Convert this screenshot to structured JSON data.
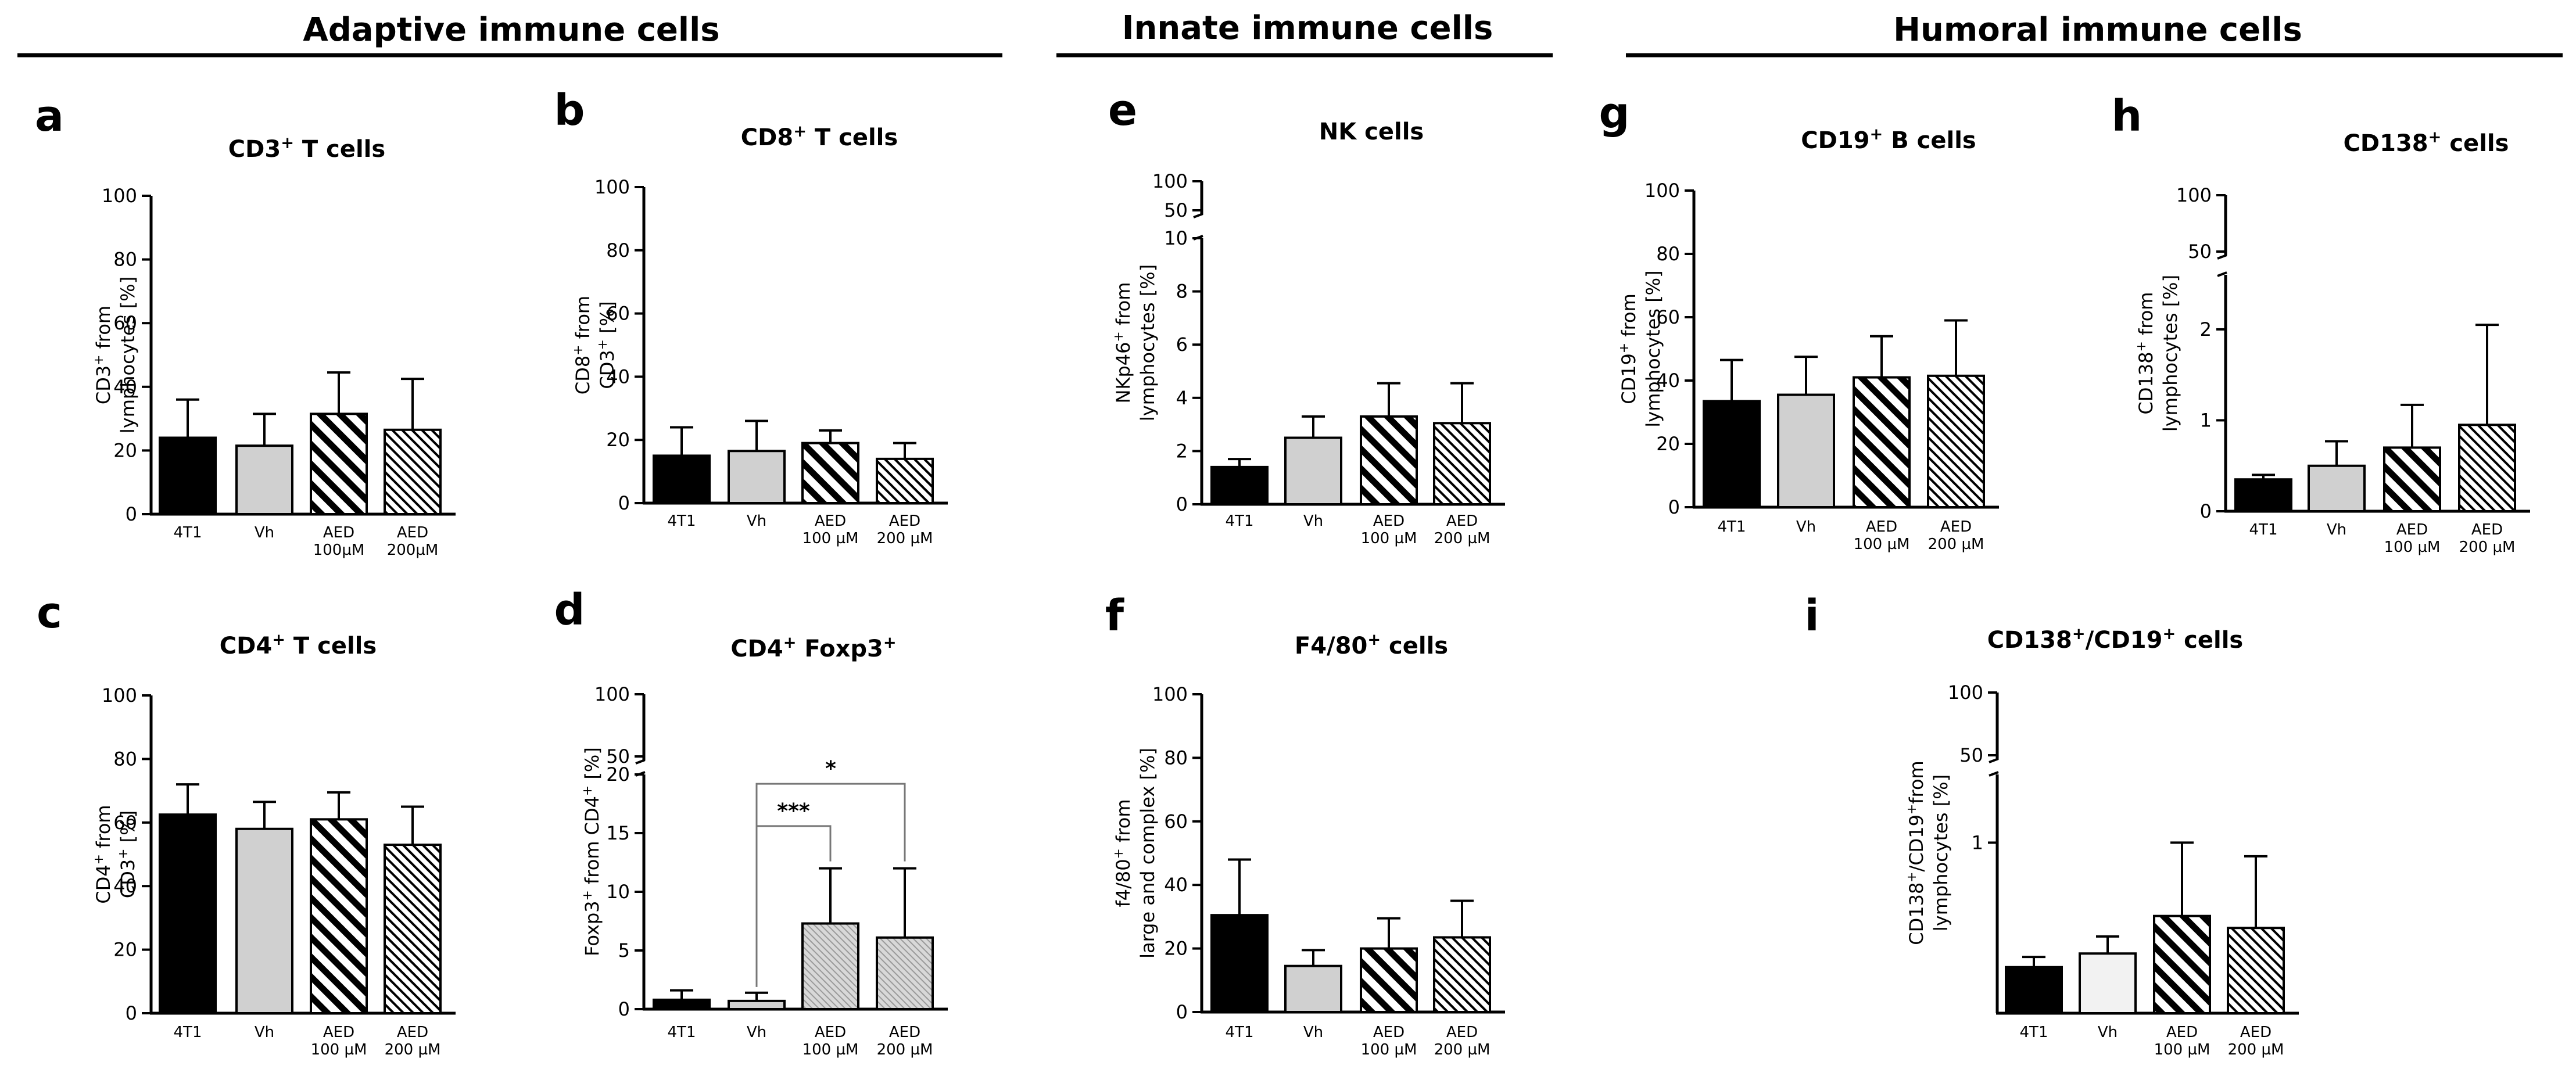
{
  "sections": [
    {
      "title": "Adaptive immune cells"
    },
    {
      "title": "Innate immune cells"
    },
    {
      "title": "Humoral  immune cells"
    }
  ],
  "colors": {
    "black_bar": "#000000",
    "grey_bar": "#d0d0d0",
    "light_bar": "#f2f2f2",
    "stripe": "#000000",
    "axis": "#000000"
  },
  "chart_data": [
    {
      "id": "a",
      "letter": "a",
      "type": "bar",
      "title": "CD3",
      "title_sup": "+",
      "title_rest": " T cells",
      "ylabel_lines": [
        [
          "CD3",
          "+",
          " from"
        ],
        [
          "lymphocytes [%]"
        ]
      ],
      "categories": [
        [
          "4T1"
        ],
        [
          "Vh"
        ],
        [
          "AED",
          "100µM"
        ],
        [
          "AED",
          "200µM"
        ]
      ],
      "values": [
        24,
        21.5,
        31.5,
        26.5
      ],
      "errors": [
        12,
        10,
        13,
        16
      ],
      "fills": [
        "black",
        "grey",
        "hatch",
        "finehatch"
      ],
      "ylim": [
        0,
        100
      ],
      "yticks": [
        "0",
        "20",
        "40",
        "60",
        "80",
        "100"
      ],
      "yticks_values": [
        0,
        20,
        40,
        60,
        80,
        100
      ]
    },
    {
      "id": "b",
      "letter": "b",
      "type": "bar",
      "title": "CD8",
      "title_sup": "+",
      "title_rest": " T cells",
      "ylabel_lines": [
        [
          "CD8",
          "+",
          " from"
        ],
        [
          "CD3",
          "+",
          " [%]"
        ]
      ],
      "categories": [
        [
          "4T1"
        ],
        [
          "Vh"
        ],
        [
          "AED",
          "100 µM"
        ],
        [
          "AED",
          "200 µM"
        ]
      ],
      "values": [
        15,
        16.5,
        19,
        14
      ],
      "errors": [
        9,
        9.5,
        4,
        5
      ],
      "fills": [
        "black",
        "grey",
        "hatch",
        "finehatch"
      ],
      "ylim": [
        0,
        100
      ],
      "yticks": [
        "0",
        "20",
        "40",
        "60",
        "80",
        "100"
      ],
      "yticks_values": [
        0,
        20,
        40,
        60,
        80,
        100
      ]
    },
    {
      "id": "c",
      "letter": "c",
      "type": "bar",
      "title": "CD4",
      "title_sup": "+",
      "title_rest": " T cells",
      "ylabel_lines": [
        [
          "CD4",
          "+",
          " from"
        ],
        [
          "CD3",
          "+",
          " [%]"
        ]
      ],
      "categories": [
        [
          "4T1"
        ],
        [
          "Vh"
        ],
        [
          "AED",
          "100 µM"
        ],
        [
          "AED",
          "200 µM"
        ]
      ],
      "values": [
        62.5,
        58,
        61,
        53
      ],
      "errors": [
        9.5,
        8.5,
        8.5,
        12
      ],
      "fills": [
        "black",
        "grey",
        "hatch",
        "finehatch"
      ],
      "ylim": [
        0,
        100
      ],
      "yticks": [
        "0",
        "20",
        "40",
        "60",
        "80",
        "100"
      ],
      "yticks_values": [
        0,
        20,
        40,
        60,
        80,
        100
      ]
    },
    {
      "id": "d",
      "letter": "d",
      "type": "bar",
      "title": "CD4",
      "title_sup": "+",
      "title_rest": " Foxp3",
      "title_sup2": "+",
      "ylabel_lines": [
        [
          "Foxp3",
          "+",
          " from CD4",
          "+",
          " [%]"
        ]
      ],
      "categories": [
        [
          "4T1"
        ],
        [
          "Vh"
        ],
        [
          "AED",
          "100 µM"
        ],
        [
          "AED",
          "200 µM"
        ]
      ],
      "values": [
        0.8,
        0.7,
        7.3,
        6.1
      ],
      "errors": [
        0.8,
        0.7,
        4.7,
        5.9
      ],
      "fills": [
        "black",
        "grey",
        "lightgrid",
        "lightgrid"
      ],
      "ylim": [
        0,
        20
      ],
      "broken_axis": {
        "lower_max": 20,
        "upper_ticks": [
          "50",
          "100"
        ]
      },
      "yticks": [
        "0",
        "5",
        "10",
        "15",
        "20"
      ],
      "yticks_values": [
        0,
        5,
        10,
        15,
        20
      ],
      "significance": [
        {
          "from": 1,
          "to": 2,
          "label": "***",
          "level": 15.6
        },
        {
          "from": 1,
          "to": 3,
          "label": "*",
          "level": 19.2
        }
      ]
    },
    {
      "id": "e",
      "letter": "e",
      "type": "bar",
      "title": "NK cells",
      "ylabel_lines": [
        [
          "NKp46",
          "+",
          " from"
        ],
        [
          "lymphocytes [%]"
        ]
      ],
      "categories": [
        [
          "4T1"
        ],
        [
          "Vh"
        ],
        [
          "AED",
          "100 µM"
        ],
        [
          "AED",
          "200 µM"
        ]
      ],
      "values": [
        1.4,
        2.5,
        3.3,
        3.05
      ],
      "errors": [
        0.3,
        0.8,
        1.25,
        1.5
      ],
      "fills": [
        "black",
        "grey",
        "hatch",
        "finehatch"
      ],
      "ylim": [
        0,
        10
      ],
      "broken_axis": {
        "lower_max": 10,
        "upper_ticks": [
          "50",
          "100"
        ]
      },
      "yticks": [
        "0",
        "2",
        "4",
        "6",
        "8",
        "10"
      ],
      "yticks_values": [
        0,
        2,
        4,
        6,
        8,
        10
      ]
    },
    {
      "id": "f",
      "letter": "f",
      "type": "bar",
      "title": "F4/80",
      "title_sup": "+",
      "title_rest": " cells",
      "ylabel_lines": [
        [
          "f4/80",
          "+",
          " from"
        ],
        [
          "large and complex [%]"
        ]
      ],
      "categories": [
        [
          "4T1"
        ],
        [
          "Vh"
        ],
        [
          "AED",
          "100 µM"
        ],
        [
          "AED",
          "200 µM"
        ]
      ],
      "values": [
        30.5,
        14.5,
        20,
        23.5
      ],
      "errors": [
        17.5,
        5,
        9.5,
        11.5
      ],
      "fills": [
        "black",
        "grey",
        "hatch",
        "finehatch"
      ],
      "ylim": [
        0,
        100
      ],
      "yticks": [
        "0",
        "20",
        "40",
        "60",
        "80",
        "100"
      ],
      "yticks_values": [
        0,
        20,
        40,
        60,
        80,
        100
      ]
    },
    {
      "id": "g",
      "letter": "g",
      "type": "bar",
      "title": "CD19",
      "title_sup": "+",
      "title_rest": " B cells",
      "ylabel_lines": [
        [
          "CD19",
          "+",
          " from"
        ],
        [
          "lymphocytes [%]"
        ]
      ],
      "categories": [
        [
          "4T1"
        ],
        [
          "Vh"
        ],
        [
          "AED",
          "100 µM"
        ],
        [
          "AED",
          "200 µM"
        ]
      ],
      "values": [
        33.5,
        35.5,
        41,
        41.5
      ],
      "errors": [
        13,
        12,
        13,
        17.5
      ],
      "fills": [
        "black",
        "grey",
        "hatch",
        "finehatch"
      ],
      "ylim": [
        0,
        100
      ],
      "yticks": [
        "0",
        "20",
        "40",
        "60",
        "80",
        "100"
      ],
      "yticks_values": [
        0,
        20,
        40,
        60,
        80,
        100
      ]
    },
    {
      "id": "h",
      "letter": "h",
      "type": "bar",
      "title": "CD138",
      "title_sup": "+",
      "title_rest": " cells",
      "ylabel_lines": [
        [
          "CD138",
          "+",
          " from"
        ],
        [
          "lymphocytes [%]"
        ]
      ],
      "categories": [
        [
          "4T1"
        ],
        [
          "Vh"
        ],
        [
          "AED",
          "100 µM"
        ],
        [
          "AED",
          "200 µM"
        ]
      ],
      "values": [
        0.35,
        0.5,
        0.7,
        0.95
      ],
      "errors": [
        0.05,
        0.27,
        0.47,
        1.1
      ],
      "fills": [
        "black",
        "grey",
        "hatch",
        "finehatch"
      ],
      "ylim": [
        0,
        2.6
      ],
      "broken_axis": {
        "lower_max": 2.6,
        "upper_ticks": [
          "50",
          "100"
        ]
      },
      "yticks": [
        "0",
        "1",
        "2"
      ],
      "yticks_values": [
        0,
        1,
        2
      ]
    },
    {
      "id": "i",
      "letter": "i",
      "type": "bar",
      "title": "CD138",
      "title_sup": "+",
      "title_rest": "/CD19",
      "title_sup2": "+",
      "title_rest2": " cells",
      "ylabel_lines": [
        [
          "CD138",
          "+",
          "/CD19",
          "+",
          "from"
        ],
        [
          "lymphocytes [%]"
        ]
      ],
      "categories": [
        [
          "4T1"
        ],
        [
          "Vh"
        ],
        [
          "AED",
          "100 µM"
        ],
        [
          "AED",
          "200 µM"
        ]
      ],
      "values": [
        0.27,
        0.35,
        0.57,
        0.5
      ],
      "errors": [
        0.06,
        0.1,
        0.43,
        0.42
      ],
      "fills": [
        "black",
        "light",
        "hatch",
        "finehatch"
      ],
      "ylim": [
        0,
        1.4
      ],
      "broken_axis": {
        "lower_max": 1.4,
        "upper_ticks": [
          "50",
          "100"
        ]
      },
      "yticks": [
        "1"
      ],
      "yticks_values": [
        1
      ]
    }
  ]
}
